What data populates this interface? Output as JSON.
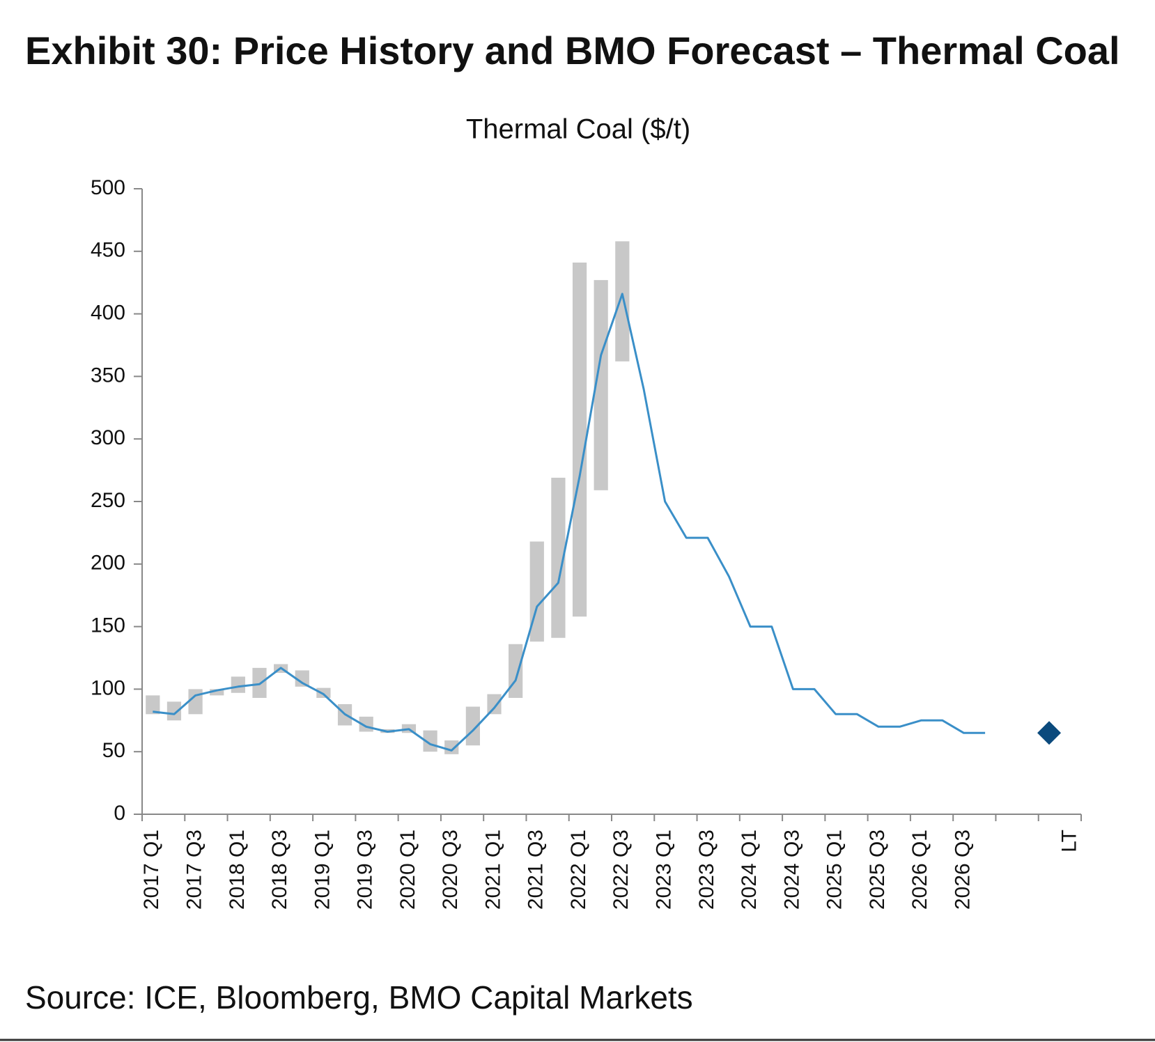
{
  "title": "Exhibit 30: Price History and BMO Forecast – Thermal Coal",
  "source": "Source: ICE, Bloomberg, BMO Capital Markets",
  "chart_data": {
    "type": "line",
    "title": "Thermal Coal ($/t)",
    "categories": [
      "2017 Q1",
      null,
      "2017 Q3",
      null,
      "2018 Q1",
      null,
      "2018 Q3",
      null,
      "2019 Q1",
      null,
      "2019 Q3",
      null,
      "2020 Q1",
      null,
      "2020 Q3",
      null,
      "2021 Q1",
      null,
      "2021 Q3",
      null,
      "2022 Q1",
      null,
      "2022 Q3",
      null,
      "2023 Q1",
      null,
      "2023 Q3",
      null,
      "2024 Q1",
      null,
      "2024 Q3",
      null,
      "2025 Q1",
      null,
      "2025 Q3",
      null,
      "2026 Q1",
      null,
      "2026 Q3",
      null,
      null,
      null,
      null,
      "LT"
    ],
    "line": {
      "color": "#3a8fc8",
      "values": [
        82,
        80,
        95,
        99,
        102,
        104,
        117,
        105,
        96,
        80,
        70,
        66,
        68,
        56,
        51,
        67,
        85,
        107,
        166,
        185,
        270,
        367,
        416,
        340,
        250,
        221,
        221,
        190,
        150,
        150,
        100,
        100,
        80,
        80,
        70,
        70,
        75,
        75,
        65,
        65,
        null,
        null,
        null
      ]
    },
    "range": {
      "color": "#c8c8c8",
      "low": [
        80,
        75,
        80,
        95,
        97,
        93,
        113,
        102,
        93,
        71,
        66,
        65,
        65,
        50,
        48,
        55,
        80,
        93,
        138,
        141,
        158,
        259,
        362,
        null,
        null,
        null,
        null,
        null,
        null,
        null,
        null,
        null,
        null,
        null,
        null,
        null,
        null,
        null,
        null,
        null,
        null,
        null,
        null
      ],
      "high": [
        95,
        90,
        100,
        100,
        110,
        117,
        120,
        115,
        101,
        88,
        78,
        68,
        72,
        67,
        59,
        86,
        96,
        136,
        218,
        269,
        441,
        427,
        458,
        null,
        null,
        null,
        null,
        null,
        null,
        null,
        null,
        null,
        null,
        null,
        null,
        null,
        null,
        null,
        null,
        null,
        null,
        null,
        null
      ]
    },
    "marker": {
      "color": "#0b4a7d",
      "values": [
        null,
        null,
        null,
        null,
        null,
        null,
        null,
        null,
        null,
        null,
        null,
        null,
        null,
        null,
        null,
        null,
        null,
        null,
        null,
        null,
        null,
        null,
        null,
        null,
        null,
        null,
        null,
        null,
        null,
        null,
        null,
        null,
        null,
        null,
        null,
        null,
        null,
        null,
        null,
        null,
        null,
        null,
        65
      ]
    },
    "ylim": [
      0,
      500
    ],
    "yticks": [
      0,
      50,
      100,
      150,
      200,
      250,
      300,
      350,
      400,
      450,
      500
    ]
  }
}
